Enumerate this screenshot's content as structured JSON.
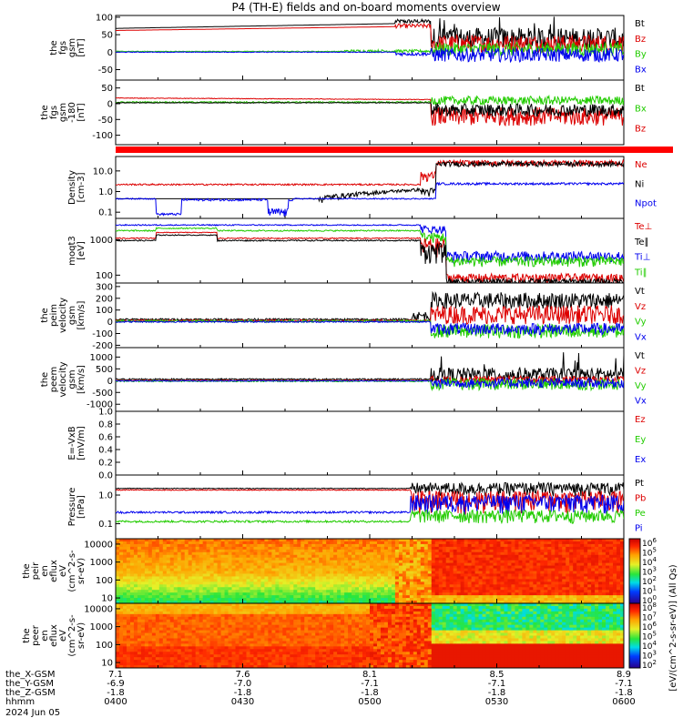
{
  "title": "P4 (TH-E) fields and on-board moments overview",
  "colors": {
    "black": "#000000",
    "red": "#dd0000",
    "green": "#22cc00",
    "blue": "#0000ee",
    "redbar": "#ff0000"
  },
  "chart_data": [
    {
      "type": "line",
      "id": "fgs",
      "ylabel_lines": [
        "the",
        "fgs",
        "gsm",
        "[nT]"
      ],
      "yticks": [
        "100",
        "50",
        "0",
        "-50"
      ],
      "ylim": [
        -80,
        105
      ],
      "legend": [
        {
          "label": "Bt",
          "color": "black"
        },
        {
          "label": "Bz",
          "color": "red"
        },
        {
          "label": "By",
          "color": "green"
        },
        {
          "label": "Bx",
          "color": "blue"
        }
      ]
    },
    {
      "type": "line",
      "id": "fgs_dsl",
      "ylabel_lines": [
        "the",
        "fgs",
        "gsm",
        "-180",
        "[nT]"
      ],
      "yticks": [
        "50",
        "0",
        "-50",
        "-100"
      ],
      "ylim": [
        -130,
        75
      ],
      "legend": [
        {
          "label": "Bt",
          "color": "black"
        },
        {
          "label": "Bx",
          "color": "green"
        },
        {
          "label": "Bz",
          "color": "red"
        }
      ]
    },
    {
      "type": "line",
      "id": "density",
      "ylabel_lines": [
        "Density",
        "[cm-3]"
      ],
      "yticks": [
        "10.0",
        "1.0",
        "0.1"
      ],
      "ylim": [
        0.05,
        50
      ],
      "log": true,
      "legend": [
        {
          "label": "Ne",
          "color": "red"
        },
        {
          "label": "Ni",
          "color": "black"
        },
        {
          "label": "Npot",
          "color": "blue"
        }
      ]
    },
    {
      "type": "line",
      "id": "temperature",
      "ylabel_lines": [
        "moqt3",
        "[eV]"
      ],
      "yticks": [
        "1000",
        "100"
      ],
      "ylim": [
        60,
        4000
      ],
      "log": true,
      "legend": [
        {
          "label": "Te⊥",
          "color": "red"
        },
        {
          "label": "Te∥",
          "color": "black"
        },
        {
          "label": "Ti⊥",
          "color": "blue"
        },
        {
          "label": "Ti∥",
          "color": "green"
        }
      ]
    },
    {
      "type": "line",
      "id": "peim_velocity",
      "ylabel_lines": [
        "the",
        "peim",
        "velocity",
        "gsm",
        "[km/s]"
      ],
      "yticks": [
        "300",
        "200",
        "100",
        "0",
        "-100",
        "-200"
      ],
      "ylim": [
        -220,
        330
      ],
      "legend": [
        {
          "label": "Vt",
          "color": "black"
        },
        {
          "label": "Vz",
          "color": "red"
        },
        {
          "label": "Vy",
          "color": "green"
        },
        {
          "label": "Vx",
          "color": "blue"
        }
      ]
    },
    {
      "type": "line",
      "id": "peem_velocity",
      "ylabel_lines": [
        "the",
        "peem",
        "velocity",
        "gsm",
        "[km/s]"
      ],
      "yticks": [
        "1000",
        "500",
        "0",
        "-500",
        "-1000"
      ],
      "ylim": [
        -1300,
        1400
      ],
      "legend": [
        {
          "label": "Vt",
          "color": "black"
        },
        {
          "label": "Vz",
          "color": "red"
        },
        {
          "label": "Vy",
          "color": "green"
        },
        {
          "label": "Vx",
          "color": "blue"
        }
      ]
    },
    {
      "type": "line",
      "id": "efield",
      "ylabel_lines": [
        "E=-VxB",
        "[mV/m]"
      ],
      "yticks": [
        "1.0",
        "0.8",
        "0.6",
        "0.4",
        "0.2",
        "0.0"
      ],
      "ylim": [
        0,
        1
      ],
      "legend": [
        {
          "label": "Ez",
          "color": "red"
        },
        {
          "label": "Ey",
          "color": "green"
        },
        {
          "label": "Ex",
          "color": "blue"
        }
      ]
    },
    {
      "type": "line",
      "id": "pressure",
      "ylabel_lines": [
        "Pressure",
        "[nPa]"
      ],
      "yticks": [
        "1.0",
        "0.1"
      ],
      "ylim": [
        0.03,
        5
      ],
      "log": true,
      "legend": [
        {
          "label": "Pt",
          "color": "black"
        },
        {
          "label": "Pb",
          "color": "red"
        },
        {
          "label": "Pe",
          "color": "green"
        },
        {
          "label": "Pi",
          "color": "blue"
        }
      ]
    },
    {
      "type": "heatmap",
      "id": "peir",
      "ylabel_lines": [
        "the",
        "peir",
        "en",
        "eflux",
        "eV",
        "(cm^2-s-",
        "sr-eV)"
      ],
      "yticks": [
        "10000",
        "1000",
        "100",
        "10"
      ],
      "ylim": [
        5,
        20000
      ],
      "log": true
    },
    {
      "type": "heatmap",
      "id": "peer",
      "ylabel_lines": [
        "the",
        "peer",
        "en",
        "eflux",
        "eV",
        "(cm^2-s-",
        "sr-eV)"
      ],
      "yticks": [
        "10000",
        "1000",
        "100",
        "10"
      ],
      "ylim": [
        5,
        20000
      ],
      "log": true
    }
  ],
  "colorbar": {
    "top_ticks": [
      "10^6",
      "10^5",
      "10^4",
      "10^3",
      "10^2",
      "10^1",
      "10^0"
    ],
    "bottom_ticks": [
      "10^8",
      "10^7",
      "10^6",
      "10^5",
      "10^4",
      "10^3",
      "10^2"
    ],
    "label": "[eV/(cm^2-s-sr-eV)] (All Qs)"
  },
  "xaxis": {
    "row_labels": [
      "the_X-GSM",
      "the_Y-GSM",
      "the_Z-GSM",
      "hhmm",
      "2024 Jun 05"
    ],
    "ticks": [
      {
        "x": "7.1",
        "y": "-6.9",
        "z": "-1.8",
        "time": "0400"
      },
      {
        "x": "7.6",
        "y": "-7.0",
        "z": "-1.8",
        "time": "0430"
      },
      {
        "x": "8.1",
        "y": "-7.1",
        "z": "-1.8",
        "time": "0500"
      },
      {
        "x": "8.5",
        "y": "-7.1",
        "z": "-1.8",
        "time": "0530"
      },
      {
        "x": "8.9",
        "y": "-7.1",
        "z": "-1.8",
        "time": "0600"
      }
    ],
    "time_range": [
      "04:00",
      "06:00"
    ]
  }
}
